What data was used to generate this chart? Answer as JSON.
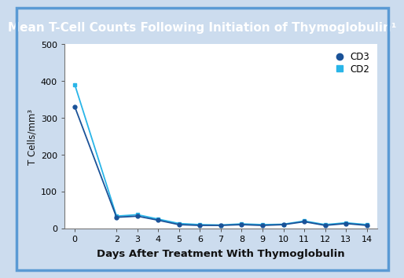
{
  "title": "Mean T-Cell Counts Following Initiation of Thymoglobulin¹",
  "xlabel": "Days After Treatment With Thymoglobulin",
  "ylabel": "T Cells/mm³",
  "title_bg_color": "#3a7dc9",
  "title_text_color": "#ffffff",
  "plot_bg_color": "#ffffff",
  "outer_bg_color": "#ccdcee",
  "border_color": "#5a9ad4",
  "xlabel_color": "#111111",
  "ylabel_color": "#111111",
  "ylim": [
    0,
    500
  ],
  "yticks": [
    0,
    100,
    200,
    300,
    400,
    500
  ],
  "xticks": [
    0,
    2,
    3,
    4,
    5,
    6,
    7,
    8,
    9,
    10,
    11,
    12,
    13,
    14
  ],
  "cd3_color": "#1a5298",
  "cd2_color": "#29b5e8",
  "cd3_marker": "o",
  "cd2_marker": "s",
  "cd3_x": [
    0,
    2,
    3,
    4,
    5,
    6,
    7,
    8,
    9,
    10,
    11,
    12,
    13,
    14
  ],
  "cd3_y": [
    330,
    30,
    33,
    22,
    10,
    8,
    8,
    10,
    8,
    10,
    18,
    8,
    13,
    8
  ],
  "cd2_x": [
    0,
    2,
    3,
    4,
    5,
    6,
    7,
    8,
    9,
    10,
    11,
    12,
    13,
    14
  ],
  "cd2_y": [
    390,
    33,
    37,
    25,
    13,
    10,
    9,
    12,
    10,
    11,
    20,
    10,
    15,
    10
  ],
  "legend_cd3_label": "CD3",
  "legend_cd2_label": "CD2",
  "linewidth": 1.3,
  "markersize": 3.5,
  "title_fontsize": 11,
  "axis_fontsize": 8,
  "xlabel_fontsize": 9.5,
  "ylabel_fontsize": 8.5
}
